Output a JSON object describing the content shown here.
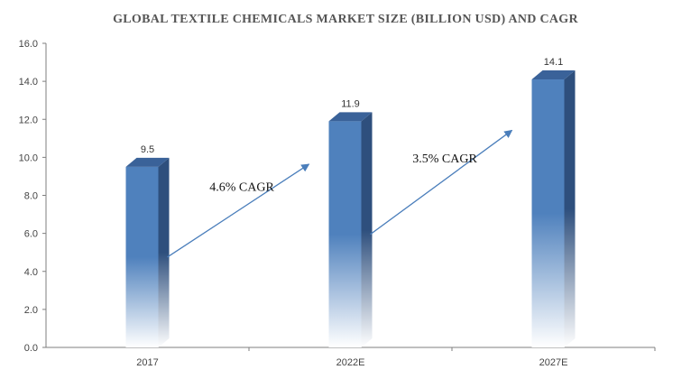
{
  "chart_data": {
    "type": "bar",
    "title": "GLOBAL TEXTILE CHEMICALS MARKET SIZE (BILLION USD) AND CAGR",
    "xlabel": "",
    "ylabel": "",
    "categories": [
      "2017",
      "2022E",
      "2027E"
    ],
    "values": [
      9.5,
      11.9,
      14.1
    ],
    "value_labels": [
      "9.5",
      "11.9",
      "14.1"
    ],
    "ylim": [
      0,
      16
    ],
    "yticks": [
      0,
      2,
      4,
      6,
      8,
      10,
      12,
      14,
      16
    ],
    "ytick_labels": [
      "0.0",
      "2.0",
      "4.0",
      "6.0",
      "8.0",
      "10.0",
      "12.0",
      "14.0",
      "16.0"
    ],
    "grid": false,
    "legend": "none",
    "annotations": [
      {
        "text": "4.6% CAGR",
        "from": "2017",
        "to": "2022E"
      },
      {
        "text": "3.5% CAGR",
        "from": "2022E",
        "to": "2027E"
      }
    ],
    "colors": {
      "bar_front": "#4f81bd",
      "bar_side": "#2e4f7d",
      "bar_top": "#3a6299",
      "arrow": "#4a7ebb",
      "axis": "#7f7f7f"
    }
  }
}
